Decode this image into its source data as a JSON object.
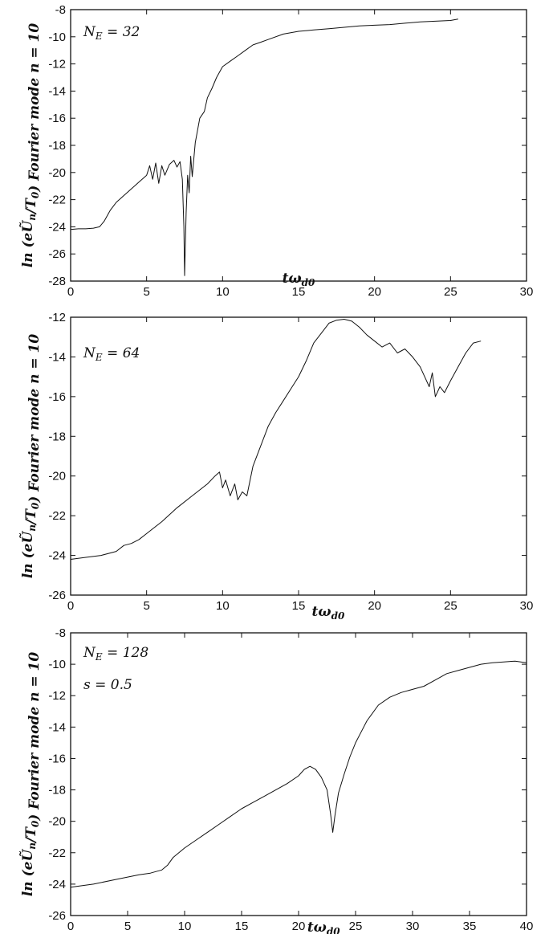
{
  "chart_data": [
    {
      "type": "line",
      "xlabel": "tω_d0",
      "ylabel": "ln (eŨ_n/T_0)   Fourier mode  n = 10",
      "annotations": [
        "N_E = 32"
      ],
      "xlim": [
        0,
        30
      ],
      "ylim": [
        -28,
        -8
      ],
      "xticks": [
        0,
        5,
        10,
        15,
        20,
        25,
        30
      ],
      "yticks": [
        -28,
        -26,
        -24,
        -22,
        -20,
        -18,
        -16,
        -14,
        -12,
        -10,
        -8
      ],
      "series": [
        {
          "x": [
            0,
            0.5,
            1.0,
            1.5,
            1.9,
            2.2,
            2.6,
            3.0,
            3.5,
            4.0,
            4.5,
            5.0,
            5.2,
            5.4,
            5.6,
            5.8,
            6.0,
            6.2,
            6.5,
            6.8,
            7.0,
            7.2,
            7.35,
            7.45,
            7.5,
            7.6,
            7.7,
            7.8,
            7.9,
            8.0,
            8.2,
            8.5,
            8.8,
            9.0,
            9.3,
            9.6,
            10.0,
            10.5,
            11.0,
            11.5,
            12.0,
            12.5,
            13.0,
            14.0,
            15.0,
            16.0,
            17.0,
            18.0,
            19.0,
            20.0,
            21.0,
            22.0,
            23.0,
            24.0,
            25.0,
            25.5
          ],
          "y": [
            -24.2,
            -24.15,
            -24.15,
            -24.1,
            -24.0,
            -23.6,
            -22.8,
            -22.2,
            -21.7,
            -21.2,
            -20.7,
            -20.2,
            -19.5,
            -20.5,
            -19.3,
            -20.8,
            -19.5,
            -20.2,
            -19.4,
            -19.1,
            -19.6,
            -19.2,
            -20.5,
            -24.0,
            -27.6,
            -23.0,
            -20.2,
            -21.5,
            -18.8,
            -20.3,
            -17.8,
            -16.0,
            -15.5,
            -14.5,
            -13.8,
            -13.0,
            -12.2,
            -11.8,
            -11.4,
            -11.0,
            -10.6,
            -10.4,
            -10.2,
            -9.8,
            -9.6,
            -9.5,
            -9.4,
            -9.3,
            -9.2,
            -9.15,
            -9.1,
            -9.0,
            -8.9,
            -8.85,
            -8.8,
            -8.7
          ]
        }
      ]
    },
    {
      "type": "line",
      "xlabel": "tω_d0",
      "ylabel": "ln (eŨ_n/T_0)   Fourier mode  n = 10",
      "annotations": [
        "N_E = 64"
      ],
      "xlim": [
        0,
        30
      ],
      "ylim": [
        -26,
        -12
      ],
      "xticks": [
        0,
        5,
        10,
        15,
        20,
        25,
        30
      ],
      "yticks": [
        -26,
        -24,
        -22,
        -20,
        -18,
        -16,
        -14,
        -12
      ],
      "series": [
        {
          "x": [
            0,
            1,
            2,
            3,
            3.5,
            4.0,
            4.5,
            5.0,
            5.5,
            6.0,
            7.0,
            8.0,
            9.0,
            9.5,
            9.8,
            10.0,
            10.2,
            10.5,
            10.8,
            11.0,
            11.3,
            11.6,
            12.0,
            12.5,
            13.0,
            13.5,
            14.0,
            14.5,
            15.0,
            15.5,
            16.0,
            16.5,
            17.0,
            17.5,
            18.0,
            18.5,
            19.0,
            19.5,
            20.0,
            20.5,
            21.0,
            21.5,
            22.0,
            22.5,
            23.0,
            23.3,
            23.6,
            23.8,
            24.0,
            24.3,
            24.6,
            25.0,
            25.5,
            26.0,
            26.5,
            27.0
          ],
          "y": [
            -24.2,
            -24.1,
            -24.0,
            -23.8,
            -23.5,
            -23.4,
            -23.2,
            -22.9,
            -22.6,
            -22.3,
            -21.6,
            -21.0,
            -20.4,
            -20.0,
            -19.8,
            -20.6,
            -20.2,
            -21.0,
            -20.4,
            -21.2,
            -20.8,
            -21.0,
            -19.5,
            -18.5,
            -17.5,
            -16.8,
            -16.2,
            -15.6,
            -15.0,
            -14.2,
            -13.3,
            -12.8,
            -12.3,
            -12.15,
            -12.1,
            -12.2,
            -12.5,
            -12.9,
            -13.2,
            -13.5,
            -13.3,
            -13.8,
            -13.6,
            -14.0,
            -14.5,
            -15.0,
            -15.5,
            -14.8,
            -16.0,
            -15.5,
            -15.8,
            -15.2,
            -14.5,
            -13.8,
            -13.3,
            -13.2
          ]
        }
      ]
    },
    {
      "type": "line",
      "xlabel": "tω_d0",
      "ylabel": "ln (eŨ_n/T_0)   Fourier mode  n = 10",
      "annotations": [
        "N_E = 128",
        "s = 0.5"
      ],
      "xlim": [
        0,
        40
      ],
      "ylim": [
        -26,
        -8
      ],
      "xticks": [
        0,
        5,
        10,
        15,
        20,
        25,
        30,
        35,
        40
      ],
      "yticks": [
        -26,
        -24,
        -22,
        -20,
        -18,
        -16,
        -14,
        -12,
        -10,
        -8
      ],
      "series": [
        {
          "x": [
            0,
            2,
            4,
            6,
            7,
            7.5,
            8,
            8.5,
            9,
            10,
            11,
            12,
            13,
            14,
            15,
            16,
            17,
            18,
            19,
            20,
            20.5,
            21,
            21.5,
            22,
            22.5,
            22.8,
            23.0,
            23.2,
            23.5,
            24,
            24.5,
            25,
            25.5,
            26,
            27,
            28,
            29,
            30,
            31,
            32,
            33,
            34,
            35,
            36,
            37,
            38,
            39,
            40
          ],
          "y": [
            -24.2,
            -24.0,
            -23.7,
            -23.4,
            -23.3,
            -23.2,
            -23.1,
            -22.8,
            -22.3,
            -21.7,
            -21.2,
            -20.7,
            -20.2,
            -19.7,
            -19.2,
            -18.8,
            -18.4,
            -18.0,
            -17.6,
            -17.1,
            -16.7,
            -16.5,
            -16.7,
            -17.2,
            -18.0,
            -19.5,
            -20.7,
            -19.6,
            -18.2,
            -17.0,
            -15.9,
            -15.0,
            -14.3,
            -13.6,
            -12.6,
            -12.1,
            -11.8,
            -11.6,
            -11.4,
            -11.0,
            -10.6,
            -10.4,
            -10.2,
            -10.0,
            -9.9,
            -9.85,
            -9.8,
            -9.9
          ]
        }
      ]
    }
  ]
}
